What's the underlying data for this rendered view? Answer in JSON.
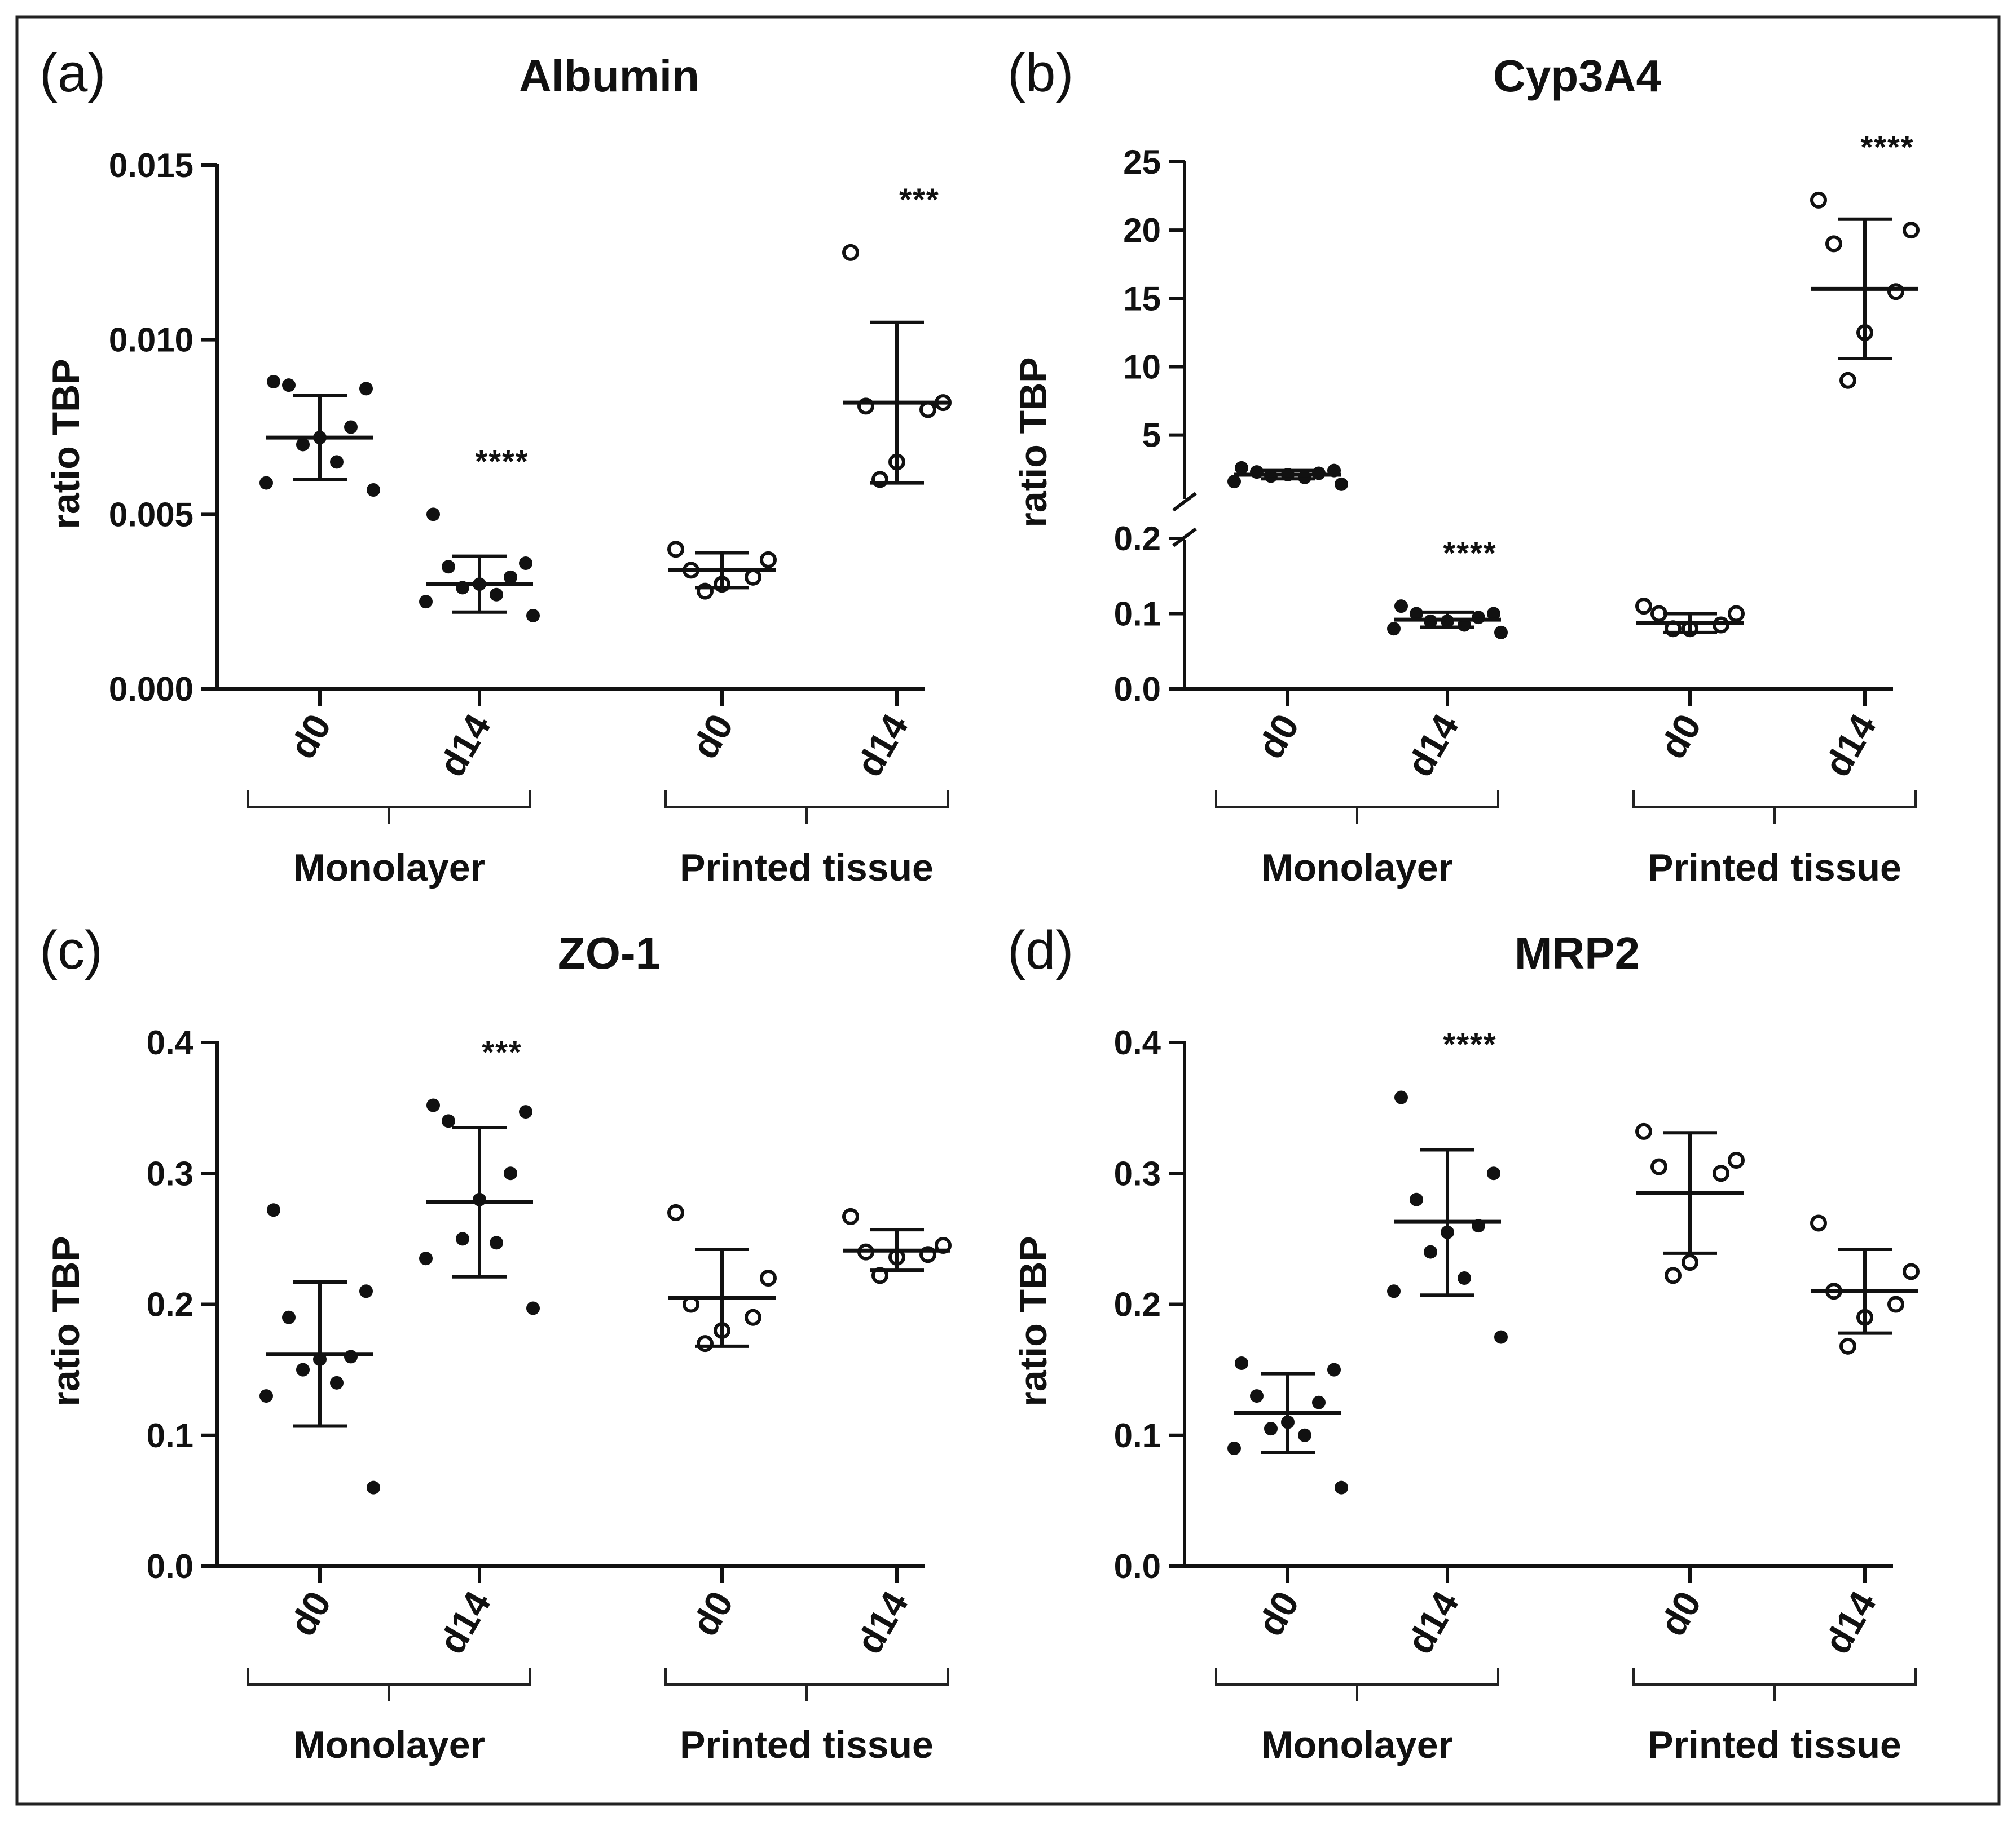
{
  "chart_data": [
    {
      "panel": "(a)",
      "title": "Albumin",
      "type": "scatter",
      "ylabel": "ratio TBP",
      "ylim": [
        0,
        0.015
      ],
      "yticks": [
        0,
        0.005,
        0.01,
        0.015
      ],
      "ytick_labels": [
        "0.000",
        "0.005",
        "0.010",
        "0.015"
      ],
      "categories": [
        "d0",
        "d14",
        "d0",
        "d14"
      ],
      "groups": [
        "Monolayer",
        "Printed tissue"
      ],
      "series": [
        {
          "name": "Monolayer d0",
          "category": "d0",
          "group": "Monolayer",
          "marker": "filled",
          "points": [
            0.0088,
            0.0086,
            0.0087,
            0.0075,
            0.0072,
            0.007,
            0.0065,
            0.0059,
            0.0057
          ],
          "mean": 0.0072,
          "sd_low": 0.006,
          "sd_high": 0.0084,
          "significance": ""
        },
        {
          "name": "Monolayer d14",
          "category": "d14",
          "group": "Monolayer",
          "marker": "filled",
          "points": [
            0.005,
            0.0036,
            0.0035,
            0.0032,
            0.003,
            0.0029,
            0.0027,
            0.0025,
            0.0021
          ],
          "mean": 0.003,
          "sd_low": 0.0022,
          "sd_high": 0.0038,
          "significance": "****"
        },
        {
          "name": "Printed tissue d0",
          "category": "d0",
          "group": "Printed tissue",
          "marker": "open",
          "points": [
            0.004,
            0.0037,
            0.0034,
            0.0032,
            0.003,
            0.0028
          ],
          "mean": 0.0034,
          "sd_low": 0.0029,
          "sd_high": 0.0039,
          "significance": ""
        },
        {
          "name": "Printed tissue d14",
          "category": "d14",
          "group": "Printed tissue",
          "marker": "open",
          "points": [
            0.0125,
            0.0082,
            0.0081,
            0.008,
            0.0065,
            0.006
          ],
          "mean": 0.0082,
          "sd_low": 0.0059,
          "sd_high": 0.0105,
          "significance": "***"
        }
      ]
    },
    {
      "panel": "(b)",
      "title": "Cyp3A4",
      "type": "scatter",
      "ylabel": "ratio TBP",
      "broken_axis": true,
      "ylim_lower": [
        0,
        0.2
      ],
      "ylim_upper": [
        0.2,
        25
      ],
      "yticks_lower": [
        0,
        0.1,
        0.2
      ],
      "ytick_labels_lower": [
        "0.0",
        "0.1",
        "0.2"
      ],
      "yticks_upper": [
        5,
        10,
        15,
        20,
        25
      ],
      "ytick_labels_upper": [
        "5",
        "10",
        "15",
        "20",
        "25"
      ],
      "categories": [
        "d0",
        "d14",
        "d0",
        "d14"
      ],
      "groups": [
        "Monolayer",
        "Printed tissue"
      ],
      "series": [
        {
          "name": "Monolayer d0",
          "category": "d0",
          "group": "Monolayer",
          "marker": "filled",
          "points": [
            2.6,
            2.4,
            2.3,
            2.2,
            2.1,
            2.0,
            1.9,
            1.6,
            1.4
          ],
          "mean": 2.1,
          "sd_low": 1.8,
          "sd_high": 2.4,
          "significance": ""
        },
        {
          "name": "Monolayer d14",
          "category": "d14",
          "group": "Monolayer",
          "marker": "filled",
          "points": [
            0.11,
            0.1,
            0.1,
            0.095,
            0.09,
            0.09,
            0.085,
            0.08,
            0.075
          ],
          "mean": 0.092,
          "sd_low": 0.082,
          "sd_high": 0.102,
          "significance": "****"
        },
        {
          "name": "Printed tissue d0",
          "category": "d0",
          "group": "Printed tissue",
          "marker": "open",
          "points": [
            0.11,
            0.1,
            0.1,
            0.085,
            0.08,
            0.08
          ],
          "mean": 0.088,
          "sd_low": 0.075,
          "sd_high": 0.1,
          "significance": ""
        },
        {
          "name": "Printed tissue d14",
          "category": "d14",
          "group": "Printed tissue",
          "marker": "open",
          "points": [
            22.2,
            20.0,
            19.0,
            15.5,
            12.5,
            9.0
          ],
          "mean": 15.7,
          "sd_low": 10.6,
          "sd_high": 20.8,
          "significance": "****"
        }
      ]
    },
    {
      "panel": "(c)",
      "title": "ZO-1",
      "type": "scatter",
      "ylabel": "ratio TBP",
      "ylim": [
        0,
        0.4
      ],
      "yticks": [
        0,
        0.1,
        0.2,
        0.3,
        0.4
      ],
      "ytick_labels": [
        "0.0",
        "0.1",
        "0.2",
        "0.3",
        "0.4"
      ],
      "categories": [
        "d0",
        "d14",
        "d0",
        "d14"
      ],
      "groups": [
        "Monolayer",
        "Printed tissue"
      ],
      "series": [
        {
          "name": "Monolayer d0",
          "category": "d0",
          "group": "Monolayer",
          "marker": "filled",
          "points": [
            0.272,
            0.21,
            0.19,
            0.16,
            0.158,
            0.15,
            0.14,
            0.13,
            0.06
          ],
          "mean": 0.162,
          "sd_low": 0.107,
          "sd_high": 0.217,
          "significance": ""
        },
        {
          "name": "Monolayer d14",
          "category": "d14",
          "group": "Monolayer",
          "marker": "filled",
          "points": [
            0.352,
            0.347,
            0.34,
            0.3,
            0.28,
            0.25,
            0.247,
            0.235,
            0.197
          ],
          "mean": 0.278,
          "sd_low": 0.221,
          "sd_high": 0.335,
          "significance": "***"
        },
        {
          "name": "Printed tissue d0",
          "category": "d0",
          "group": "Printed tissue",
          "marker": "open",
          "points": [
            0.27,
            0.22,
            0.2,
            0.19,
            0.18,
            0.17
          ],
          "mean": 0.205,
          "sd_low": 0.168,
          "sd_high": 0.242,
          "significance": ""
        },
        {
          "name": "Printed tissue d14",
          "category": "d14",
          "group": "Printed tissue",
          "marker": "open",
          "points": [
            0.267,
            0.245,
            0.24,
            0.238,
            0.236,
            0.222
          ],
          "mean": 0.241,
          "sd_low": 0.226,
          "sd_high": 0.257,
          "significance": ""
        }
      ]
    },
    {
      "panel": "(d)",
      "title": "MRP2",
      "type": "scatter",
      "ylabel": "ratio TBP",
      "ylim": [
        0,
        0.4
      ],
      "yticks": [
        0,
        0.1,
        0.2,
        0.3,
        0.4
      ],
      "ytick_labels": [
        "0.0",
        "0.1",
        "0.2",
        "0.3",
        "0.4"
      ],
      "categories": [
        "d0",
        "d14",
        "d0",
        "d14"
      ],
      "groups": [
        "Monolayer",
        "Printed tissue"
      ],
      "series": [
        {
          "name": "Monolayer d0",
          "category": "d0",
          "group": "Monolayer",
          "marker": "filled",
          "points": [
            0.155,
            0.15,
            0.13,
            0.125,
            0.11,
            0.105,
            0.1,
            0.09,
            0.06
          ],
          "mean": 0.117,
          "sd_low": 0.087,
          "sd_high": 0.147,
          "significance": ""
        },
        {
          "name": "Monolayer d14",
          "category": "d14",
          "group": "Monolayer",
          "marker": "filled",
          "points": [
            0.358,
            0.3,
            0.28,
            0.26,
            0.255,
            0.24,
            0.22,
            0.21,
            0.175
          ],
          "mean": 0.263,
          "sd_low": 0.207,
          "sd_high": 0.318,
          "significance": "****"
        },
        {
          "name": "Printed tissue d0",
          "category": "d0",
          "group": "Printed tissue",
          "marker": "open",
          "points": [
            0.332,
            0.31,
            0.305,
            0.3,
            0.232,
            0.222
          ],
          "mean": 0.285,
          "sd_low": 0.239,
          "sd_high": 0.331,
          "significance": ""
        },
        {
          "name": "Printed tissue d14",
          "category": "d14",
          "group": "Printed tissue",
          "marker": "open",
          "points": [
            0.262,
            0.225,
            0.21,
            0.2,
            0.19,
            0.168
          ],
          "mean": 0.21,
          "sd_low": 0.178,
          "sd_high": 0.242,
          "significance": ""
        }
      ]
    }
  ]
}
